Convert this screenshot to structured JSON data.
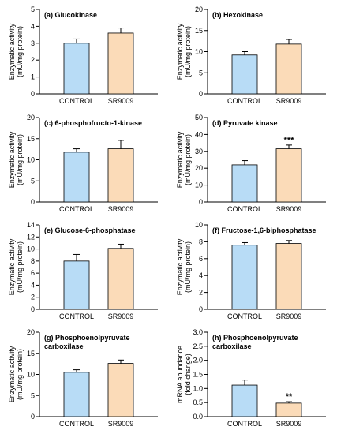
{
  "colors": {
    "control": "#b8dcf6",
    "sr9009": "#fbdbb8",
    "axis": "#000000"
  },
  "chart_data": [
    {
      "type": "bar",
      "panel": "(a)",
      "title": "(a) Glucokinase",
      "title_lines": [
        "(a) Glucokinase"
      ],
      "ylabel_lines": [
        "Enzymatic activity",
        "(mU/mg protein)"
      ],
      "categories": [
        "CONTROL",
        "SR9009"
      ],
      "values": [
        3.0,
        3.6
      ],
      "errors": [
        0.25,
        0.3
      ],
      "significance": [
        "",
        ""
      ],
      "ylim": [
        0,
        5
      ],
      "yticks": [
        0,
        1,
        2,
        3,
        4,
        5
      ],
      "ytick_labels": [
        "0",
        "1",
        "2",
        "3",
        "4",
        "5"
      ]
    },
    {
      "type": "bar",
      "panel": "(b)",
      "title": "(b) Hexokinase",
      "title_lines": [
        "(b) Hexokinase"
      ],
      "ylabel_lines": [
        "Enzymatic activity",
        "(mU/mg protein)"
      ],
      "categories": [
        "CONTROL",
        "SR9009"
      ],
      "values": [
        9.2,
        11.8
      ],
      "errors": [
        0.8,
        1.1
      ],
      "significance": [
        "",
        ""
      ],
      "ylim": [
        0,
        20
      ],
      "yticks": [
        0,
        5,
        10,
        15,
        20
      ],
      "ytick_labels": [
        "0",
        "5",
        "10",
        "15",
        "20"
      ]
    },
    {
      "type": "bar",
      "panel": "(c)",
      "title": "(c) 6-phosphofructo-1-kinase",
      "title_lines": [
        "(c) 6-phosphofructo-1-kinase"
      ],
      "ylabel_lines": [
        "Enzymatic activity",
        "(mU/mg protein)"
      ],
      "categories": [
        "CONTROL",
        "SR9009"
      ],
      "values": [
        11.8,
        12.6
      ],
      "errors": [
        0.8,
        2.0
      ],
      "significance": [
        "",
        ""
      ],
      "ylim": [
        0,
        20
      ],
      "yticks": [
        0,
        5,
        10,
        15,
        20
      ],
      "ytick_labels": [
        "0",
        "5",
        "10",
        "15",
        "20"
      ]
    },
    {
      "type": "bar",
      "panel": "(d)",
      "title": "(d) Pyruvate kinase",
      "title_lines": [
        "(d) Pyruvate kinase"
      ],
      "ylabel_lines": [
        "Enzymatic activity",
        "(mU/mg protein)"
      ],
      "categories": [
        "CONTROL",
        "SR9009"
      ],
      "values": [
        22,
        31.5
      ],
      "errors": [
        2.5,
        2.2
      ],
      "significance": [
        "",
        "***"
      ],
      "ylim": [
        0,
        50
      ],
      "yticks": [
        0,
        10,
        20,
        30,
        40,
        50
      ],
      "ytick_labels": [
        "0",
        "10",
        "20",
        "30",
        "40",
        "50"
      ]
    },
    {
      "type": "bar",
      "panel": "(e)",
      "title": "(e) Glucose-6-phosphatase",
      "title_lines": [
        "(e) Glucose-6-phosphatase"
      ],
      "ylabel_lines": [
        "Enzymatic activity",
        "(mU/mg protein)"
      ],
      "categories": [
        "CONTROL",
        "SR9009"
      ],
      "values": [
        8.0,
        10.1
      ],
      "errors": [
        1.1,
        0.7
      ],
      "significance": [
        "",
        ""
      ],
      "ylim": [
        0,
        14
      ],
      "yticks": [
        0,
        2,
        4,
        6,
        8,
        10,
        12,
        14
      ],
      "ytick_labels": [
        "0",
        "2",
        "4",
        "6",
        "8",
        "10",
        "12",
        "14"
      ]
    },
    {
      "type": "bar",
      "panel": "(f)",
      "title": "(f) Fructose-1,6-biphosphatase",
      "title_lines": [
        "(f) Fructose-1,6-biphosphatase"
      ],
      "ylabel_lines": [
        "Enzymatic activity",
        "(mU/mg protein)"
      ],
      "categories": [
        "CONTROL",
        "SR9009"
      ],
      "values": [
        7.6,
        7.8
      ],
      "errors": [
        0.3,
        0.35
      ],
      "significance": [
        "",
        ""
      ],
      "ylim": [
        0,
        10
      ],
      "yticks": [
        0,
        2,
        4,
        6,
        8,
        10
      ],
      "ytick_labels": [
        "0",
        "2",
        "4",
        "6",
        "8",
        "10"
      ]
    },
    {
      "type": "bar",
      "panel": "(g)",
      "title": "(g) Phosphoenolpyruvate carboxilase",
      "title_lines": [
        "(g) Phosphoenolpyruvate",
        "carboxilase"
      ],
      "ylabel_lines": [
        "Enzymatic activity",
        "(mU/mg protein)"
      ],
      "categories": [
        "CONTROL",
        "SR9009"
      ],
      "values": [
        10.5,
        12.6
      ],
      "errors": [
        0.6,
        0.8
      ],
      "significance": [
        "",
        ""
      ],
      "ylim": [
        0,
        20
      ],
      "yticks": [
        0,
        5,
        10,
        15,
        20
      ],
      "ytick_labels": [
        "0",
        "5",
        "10",
        "15",
        "20"
      ]
    },
    {
      "type": "bar",
      "panel": "(h)",
      "title": "(h) Phosphoenolpyruvate carboxilase",
      "title_lines": [
        "(h) Phosphoenolpyruvate",
        "carboxilase"
      ],
      "ylabel_lines": [
        "mRNA abundance",
        "(fold change)"
      ],
      "categories": [
        "CONTROL",
        "SR9009"
      ],
      "values": [
        1.12,
        0.48
      ],
      "errors": [
        0.18,
        0.05
      ],
      "significance": [
        "",
        "**"
      ],
      "ylim": [
        0,
        3.0
      ],
      "yticks": [
        0,
        0.5,
        1.0,
        1.5,
        2.0,
        2.5,
        3.0
      ],
      "ytick_labels": [
        "0.0",
        "0.5",
        "1.0",
        "1.5",
        "2.0",
        "2.5",
        "3.0"
      ]
    }
  ]
}
